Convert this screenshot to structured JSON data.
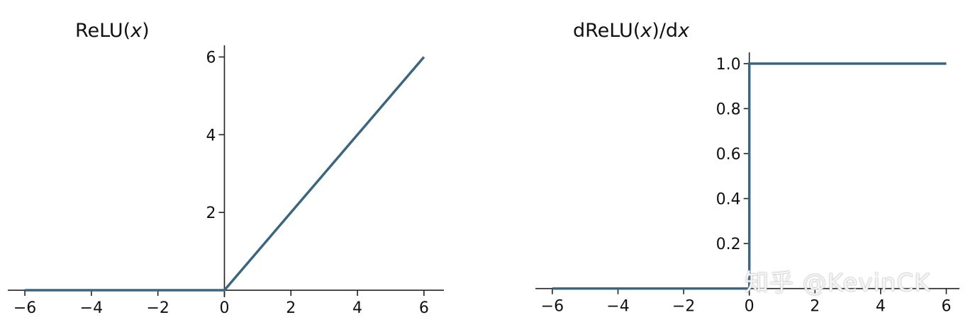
{
  "chart_data": [
    {
      "type": "line",
      "title": "ReLU(x)",
      "title_parts": [
        {
          "text": "ReLU("
        },
        {
          "text": "x",
          "italic": true
        },
        {
          "text": ")"
        }
      ],
      "xlabel": "",
      "ylabel": "",
      "xlim": [
        -6.3,
        6.6
      ],
      "ylim": [
        -0.2,
        6.3
      ],
      "xticks": [
        -6,
        -4,
        -2,
        0,
        2,
        4,
        6
      ],
      "xtick_labels": [
        "−6",
        "−4",
        "−2",
        "0",
        "2",
        "4",
        "6"
      ],
      "yticks": [
        2,
        4,
        6
      ],
      "ytick_labels": [
        "2",
        "4",
        "6"
      ],
      "spines": "centered",
      "grid": false,
      "series": [
        {
          "x": [
            -6,
            0,
            6
          ],
          "y": [
            0,
            0,
            6
          ]
        }
      ]
    },
    {
      "type": "line",
      "title": "dReLU(x)/dx",
      "title_parts": [
        {
          "text": "dReLU("
        },
        {
          "text": "x",
          "italic": true
        },
        {
          "text": ")/d"
        },
        {
          "text": "x",
          "italic": true
        }
      ],
      "xlabel": "",
      "ylabel": "",
      "xlim": [
        -6.3,
        6.4
      ],
      "ylim": [
        -0.02,
        1.05
      ],
      "xticks": [
        -6,
        -4,
        -2,
        0,
        2,
        4,
        6
      ],
      "xtick_labels": [
        "−6",
        "−4",
        "−2",
        "0",
        "2",
        "4",
        "6"
      ],
      "yticks": [
        0.2,
        0.4,
        0.6,
        0.8,
        1.0
      ],
      "ytick_labels": [
        "0.2",
        "0.4",
        "0.6",
        "0.8",
        "1.0"
      ],
      "spines": "centered",
      "grid": false,
      "series": [
        {
          "x": [
            -6,
            0,
            0,
            6
          ],
          "y": [
            0,
            0,
            1,
            1
          ]
        }
      ]
    }
  ],
  "colors": {
    "line": "#3c6680",
    "axis": "#222222",
    "text": "#111111"
  },
  "watermark": "知乎 @KevinCK"
}
